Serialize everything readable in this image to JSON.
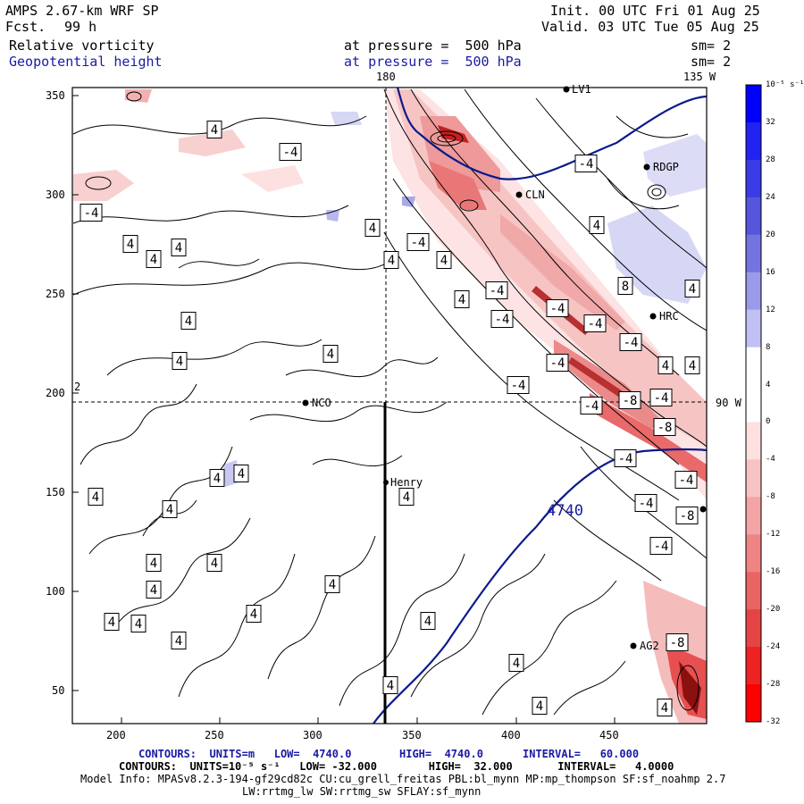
{
  "header": {
    "model": "AMPS 2.67-km WRF SP",
    "fcst_label": "Fcst.",
    "fcst_value": "99 h",
    "init": "Init. 00 UTC Fri 01 Aug 25",
    "valid": "Valid. 03 UTC Tue 05 Aug 25",
    "field1": "Relative vorticity",
    "field1_level": "at pressure =  500 hPa",
    "field1_sm": "sm= 2",
    "field2": "Geopotential height",
    "field2_level": "at pressure =  500 hPa",
    "field2_sm": "sm= 2"
  },
  "axes": {
    "x_ticks": [
      "200",
      "250",
      "300",
      "350",
      "400",
      "450"
    ],
    "y_ticks": [
      "350",
      "300",
      "250",
      "200",
      "150",
      "100",
      "50"
    ],
    "lon_top_180": "180",
    "lon_top_135": "135 W",
    "lon_right_90": "90 W",
    "y_left_marker": "2"
  },
  "stations": [
    {
      "name": "LV1"
    },
    {
      "name": "RDGP"
    },
    {
      "name": "CLN"
    },
    {
      "name": "HRC"
    },
    {
      "name": "NCO"
    },
    {
      "name": "Henry"
    },
    {
      "name": "AG2"
    }
  ],
  "contour_labels": {
    "pos4": "4",
    "neg4": "-4",
    "neg8": "-8",
    "pos8": "8",
    "height": "4740"
  },
  "colorbar": {
    "unit": "10⁻⁵ s⁻¹",
    "levels": [
      "32",
      "28",
      "24",
      "20",
      "16",
      "12",
      "8",
      "4",
      "0",
      "-4",
      "-8",
      "-12",
      "-16",
      "-20",
      "-24",
      "-28",
      "-32"
    ],
    "colors_top_to_bottom": [
      "#0000ff",
      "#2222f2",
      "#3a3ae6",
      "#5555dd",
      "#7474e0",
      "#9a9aea",
      "#c0c0f4",
      "#ffffff",
      "#ffffff",
      "#fde0e0",
      "#f9c2c2",
      "#f4a4a4",
      "#ef8484",
      "#ea6464",
      "#e44444",
      "#ee2222",
      "#ff0000"
    ]
  },
  "footer": {
    "line1_a": "CONTOURS:  UNITS=m   LOW=  4740.0",
    "line1_b": "HIGH=  4740.0",
    "line1_c": "INTERVAL=   60.000",
    "line2": "CONTOURS:  UNITS=10⁻⁵ s⁻¹   LOW= -32.000        HIGH=  32.000       INTERVAL=   4.0000",
    "line3": "Model Info: MPASv8.2.3-194-gf29cd82c CU:cu_grell_freitas PBL:bl_mynn MP:mp_thompson SF:sf_noahmp 2.7",
    "line4": "LW:rrtmg_lw SW:rrtmg_sw SFLAY:sf_mynn"
  }
}
